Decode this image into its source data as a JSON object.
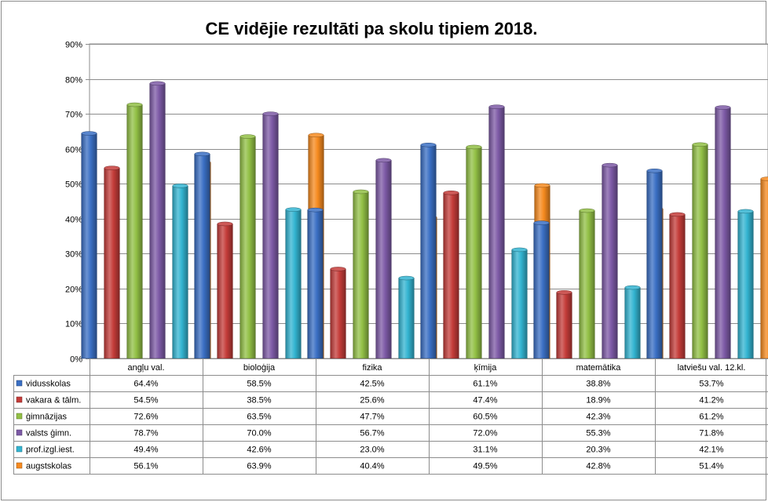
{
  "chart_data": {
    "type": "bar",
    "title": "CE vidējie rezultāti pa skolu tipiem 2018.",
    "categories": [
      "angļu val.",
      "bioloģija",
      "fizika",
      "ķīmija",
      "matemātika",
      "latviešu val. 12.kl."
    ],
    "ylim": [
      0,
      90
    ],
    "yticks": [
      "0%",
      "10%",
      "20%",
      "30%",
      "40%",
      "50%",
      "60%",
      "70%",
      "80%",
      "90%"
    ],
    "grid": true,
    "legend": "data-table-bottom",
    "series": [
      {
        "name": "vidusskolas",
        "color": "#3a6fc4",
        "values": [
          64.4,
          58.5,
          42.5,
          61.1,
          38.8,
          53.7
        ],
        "labels": [
          "64.4%",
          "58.5%",
          "42.5%",
          "61.1%",
          "38.8%",
          "53.7%"
        ]
      },
      {
        "name": "vakara & tālm.",
        "color": "#c43c39",
        "values": [
          54.5,
          38.5,
          25.6,
          47.4,
          18.9,
          41.2
        ],
        "labels": [
          "54.5%",
          "38.5%",
          "25.6%",
          "47.4%",
          "18.9%",
          "41.2%"
        ]
      },
      {
        "name": "ģimnāzijas",
        "color": "#92c045",
        "values": [
          72.6,
          63.5,
          47.7,
          60.5,
          42.3,
          61.2
        ],
        "labels": [
          "72.6%",
          "63.5%",
          "47.7%",
          "60.5%",
          "42.3%",
          "61.2%"
        ]
      },
      {
        "name": "valsts ģimn.",
        "color": "#7d5aa6",
        "values": [
          78.7,
          70.0,
          56.7,
          72.0,
          55.3,
          71.8
        ],
        "labels": [
          "78.7%",
          "70.0%",
          "56.7%",
          "72.0%",
          "55.3%",
          "71.8%"
        ]
      },
      {
        "name": "prof.izgl.iest.",
        "color": "#33b4d1",
        "values": [
          49.4,
          42.6,
          23.0,
          31.1,
          20.3,
          42.1
        ],
        "labels": [
          "49.4%",
          "42.6%",
          "23.0%",
          "31.1%",
          "20.3%",
          "42.1%"
        ]
      },
      {
        "name": "augstskolas",
        "color": "#f68a1f",
        "values": [
          56.1,
          63.9,
          40.4,
          49.5,
          42.8,
          51.4
        ],
        "labels": [
          "56.1%",
          "63.9%",
          "40.4%",
          "49.5%",
          "42.8%",
          "51.4%"
        ]
      }
    ]
  }
}
